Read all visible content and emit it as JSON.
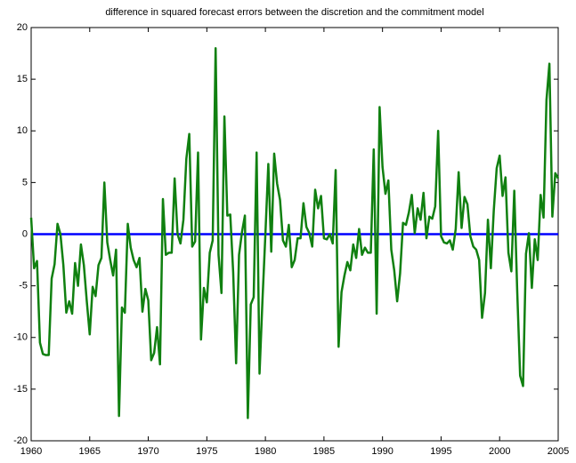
{
  "chart_data": {
    "type": "line",
    "title": "difference in squared forecast errors between the discretion and the commitment model",
    "x": [
      1960,
      1960.25,
      1960.5,
      1960.75,
      1961,
      1961.25,
      1961.5,
      1961.75,
      1962,
      1962.25,
      1962.5,
      1962.75,
      1963,
      1963.25,
      1963.5,
      1963.75,
      1964,
      1964.25,
      1964.5,
      1964.75,
      1965,
      1965.25,
      1965.5,
      1965.75,
      1966,
      1966.25,
      1966.5,
      1966.75,
      1967,
      1967.25,
      1967.5,
      1967.75,
      1968,
      1968.25,
      1968.5,
      1968.75,
      1969,
      1969.25,
      1969.5,
      1969.75,
      1970,
      1970.25,
      1970.5,
      1970.75,
      1971,
      1971.25,
      1971.5,
      1971.75,
      1972,
      1972.25,
      1972.5,
      1972.75,
      1973,
      1973.25,
      1973.5,
      1973.75,
      1974,
      1974.25,
      1974.5,
      1974.75,
      1975,
      1975.25,
      1975.5,
      1975.75,
      1976,
      1976.25,
      1976.5,
      1976.75,
      1977,
      1977.25,
      1977.5,
      1977.75,
      1978,
      1978.25,
      1978.5,
      1978.75,
      1979,
      1979.25,
      1979.5,
      1979.75,
      1980,
      1980.25,
      1980.5,
      1980.75,
      1981,
      1981.25,
      1981.5,
      1981.75,
      1982,
      1982.25,
      1982.5,
      1982.75,
      1983,
      1983.25,
      1983.5,
      1983.75,
      1984,
      1984.25,
      1984.5,
      1984.75,
      1985,
      1985.25,
      1985.5,
      1985.75,
      1986,
      1986.25,
      1986.5,
      1986.75,
      1987,
      1987.25,
      1987.5,
      1987.75,
      1988,
      1988.25,
      1988.5,
      1988.75,
      1989,
      1989.25,
      1989.5,
      1989.75,
      1990,
      1990.25,
      1990.5,
      1990.75,
      1991,
      1991.25,
      1991.5,
      1991.75,
      1992,
      1992.25,
      1992.5,
      1992.75,
      1993,
      1993.25,
      1993.5,
      1993.75,
      1994,
      1994.25,
      1994.5,
      1994.75,
      1995,
      1995.25,
      1995.5,
      1995.75,
      1996,
      1996.25,
      1996.5,
      1996.75,
      1997,
      1997.25,
      1997.5,
      1997.75,
      1998,
      1998.25,
      1998.5,
      1998.75,
      1999,
      1999.25,
      1999.5,
      1999.75,
      2000,
      2000.25,
      2000.5,
      2000.75,
      2001,
      2001.25,
      2001.5,
      2001.75,
      2002,
      2002.25,
      2002.5,
      2002.75,
      2003,
      2003.25,
      2003.5,
      2003.75,
      2004,
      2004.25,
      2004.5,
      2004.75,
      2005
    ],
    "series": [
      {
        "name": "difference",
        "color": "#108010",
        "values": [
          1.6,
          -3.3,
          -2.6,
          -10.5,
          -11.6,
          -11.7,
          -11.7,
          -4.3,
          -2.9,
          1.0,
          0,
          -3,
          -7.6,
          -6.5,
          -7.7,
          -2.8,
          -5,
          -1,
          -3,
          -6.5,
          -9.7,
          -5.1,
          -6,
          -3,
          -2.3,
          5,
          -0.8,
          -2.5,
          -4,
          -1.5,
          -17.6,
          -7.1,
          -7.6,
          1.0,
          -1.3,
          -2.5,
          -3.2,
          -2.3,
          -7.5,
          -5.3,
          -6.4,
          -12.2,
          -11.5,
          -9,
          -12.6,
          3.4,
          -2,
          -1.8,
          -1.8,
          5.4,
          0,
          -0.9,
          1.4,
          7.3,
          9.7,
          -1.2,
          -0.7,
          7.9,
          -10.2,
          -5.2,
          -6.6,
          -1.8,
          -0.6,
          18,
          -2,
          -5.7,
          11.4,
          1.8,
          1.9,
          -3.7,
          -12.5,
          -2,
          0.2,
          1.8,
          -17.8,
          -6.8,
          -6.1,
          7.9,
          -13.5,
          -6.4,
          0,
          6.8,
          -1.7,
          7.8,
          4.9,
          3.3,
          -0.6,
          -1.2,
          0.9,
          -3.2,
          -2.5,
          -0.4,
          -0.4,
          3,
          0.7,
          0.1,
          -1.2,
          4.3,
          2.5,
          3.7,
          -0.4,
          -0.5,
          0,
          -0.9,
          6.2,
          -10.9,
          -5.6,
          -4,
          -2.7,
          -3.5,
          -1,
          -2.3,
          0.5,
          -2,
          -1.3,
          -1.8,
          -1.8,
          8.2,
          -7.7,
          12.3,
          6.5,
          3.9,
          5.2,
          -1.5,
          -3.5,
          -6.5,
          -3.8,
          1.1,
          0.9,
          2.1,
          3.8,
          0.1,
          2.5,
          1.4,
          4,
          -0.4,
          1.7,
          1.5,
          2.7,
          10,
          -0.2,
          -0.8,
          -0.9,
          -0.6,
          -1.5,
          0.5,
          6,
          0.6,
          3.6,
          2.9,
          -0.2,
          -1.2,
          -1.5,
          -2.5,
          -8.1,
          -5.7,
          1.4,
          -3.3,
          2.3,
          6.4,
          7.6,
          3.7,
          5.5,
          -1.8,
          -3.6,
          4.2,
          -5.5,
          -13.7,
          -14.7,
          -1.9,
          0.1,
          -5.2,
          -0.5,
          -2.5,
          3.8,
          1.6,
          13,
          16.5,
          1.7,
          5.9,
          5.4
        ]
      }
    ],
    "reference_line": {
      "value": 0,
      "color": "#0000ff"
    },
    "xlim": [
      1960,
      2005
    ],
    "xticks": [
      1960,
      1965,
      1970,
      1975,
      1980,
      1985,
      1990,
      1995,
      2000,
      2005
    ],
    "ylim": [
      -20,
      20
    ],
    "yticks": [
      -20,
      -15,
      -10,
      -5,
      0,
      5,
      10,
      15,
      20
    ],
    "grid": false
  }
}
